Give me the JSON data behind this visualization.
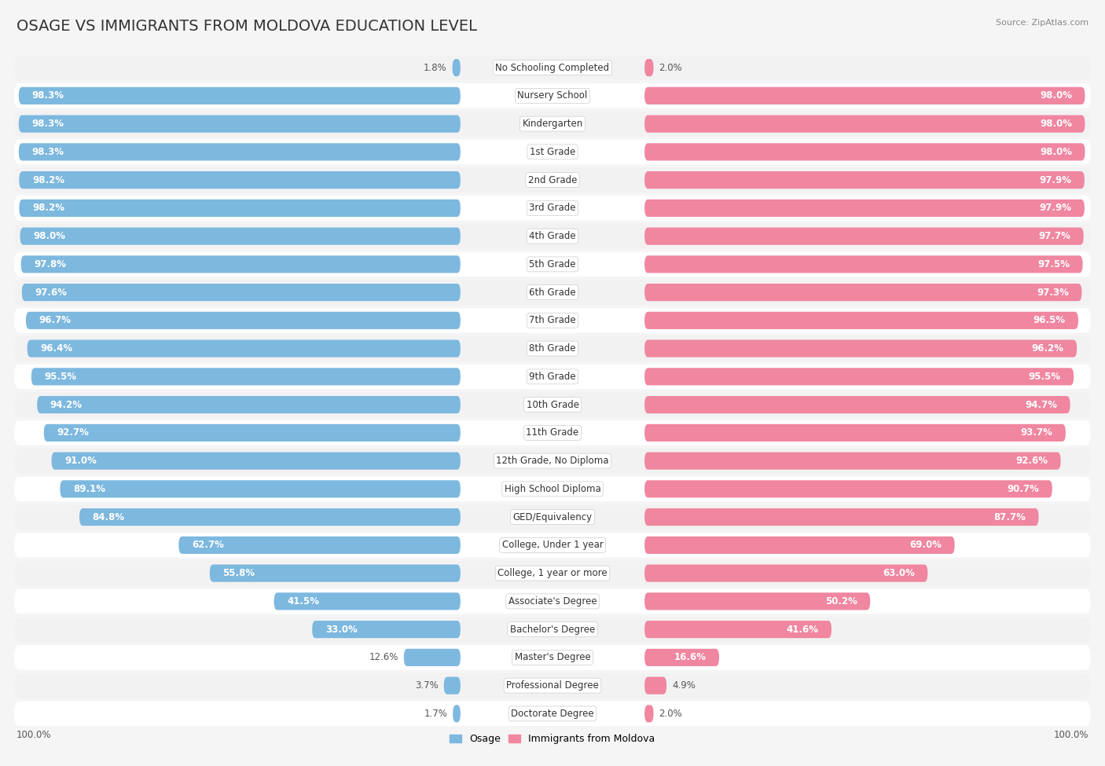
{
  "title": "OSAGE VS IMMIGRANTS FROM MOLDOVA EDUCATION LEVEL",
  "source": "Source: ZipAtlas.com",
  "categories": [
    "No Schooling Completed",
    "Nursery School",
    "Kindergarten",
    "1st Grade",
    "2nd Grade",
    "3rd Grade",
    "4th Grade",
    "5th Grade",
    "6th Grade",
    "7th Grade",
    "8th Grade",
    "9th Grade",
    "10th Grade",
    "11th Grade",
    "12th Grade, No Diploma",
    "High School Diploma",
    "GED/Equivalency",
    "College, Under 1 year",
    "College, 1 year or more",
    "Associate's Degree",
    "Bachelor's Degree",
    "Master's Degree",
    "Professional Degree",
    "Doctorate Degree"
  ],
  "osage": [
    1.8,
    98.3,
    98.3,
    98.3,
    98.2,
    98.2,
    98.0,
    97.8,
    97.6,
    96.7,
    96.4,
    95.5,
    94.2,
    92.7,
    91.0,
    89.1,
    84.8,
    62.7,
    55.8,
    41.5,
    33.0,
    12.6,
    3.7,
    1.7
  ],
  "moldova": [
    2.0,
    98.0,
    98.0,
    98.0,
    97.9,
    97.9,
    97.7,
    97.5,
    97.3,
    96.5,
    96.2,
    95.5,
    94.7,
    93.7,
    92.6,
    90.7,
    87.7,
    69.0,
    63.0,
    50.2,
    41.6,
    16.6,
    4.9,
    2.0
  ],
  "osage_color": "#7db8df",
  "moldova_color": "#f086a0",
  "row_bg_even": "#f2f2f2",
  "row_bg_odd": "#ffffff",
  "label_bg": "#ffffff",
  "title_fontsize": 14,
  "label_fontsize": 8.5,
  "value_fontsize_inside": 8.5,
  "value_fontsize_outside": 8.5,
  "legend_fontsize": 9,
  "inside_text_color": "#ffffff",
  "outside_text_color": "#555555"
}
